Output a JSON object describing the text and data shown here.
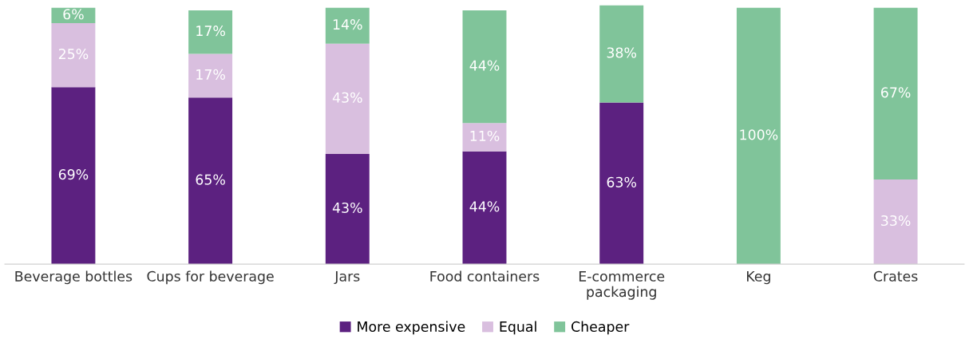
{
  "chart_data": {
    "type": "bar",
    "stacked": true,
    "categories": [
      "Beverage bottles",
      "Cups for beverage",
      "Jars",
      "Food containers",
      "E-commerce\npackaging",
      "Keg",
      "Crates"
    ],
    "series": [
      {
        "name": "More expensive",
        "color": "#5c2180",
        "values": [
          69,
          65,
          43,
          44,
          63,
          null,
          null
        ],
        "value_labels": [
          "69%",
          "65%",
          "43%",
          "44%",
          "63%",
          null,
          null
        ]
      },
      {
        "name": "Equal",
        "color": "#d9bfdf",
        "values": [
          25,
          17,
          43,
          11,
          null,
          null,
          33
        ],
        "value_labels": [
          "25%",
          "17%",
          "43%",
          "11%",
          null,
          null,
          "33%"
        ]
      },
      {
        "name": "Cheaper",
        "color": "#80c49a",
        "values": [
          6,
          17,
          14,
          44,
          38,
          100,
          67
        ],
        "value_labels": [
          "6%",
          "17%",
          "14%",
          "44%",
          "38%",
          "100%",
          "67%"
        ]
      }
    ],
    "ylim": [
      0,
      101
    ],
    "tick_labels": "x",
    "grid": false,
    "legend": "bottom"
  }
}
